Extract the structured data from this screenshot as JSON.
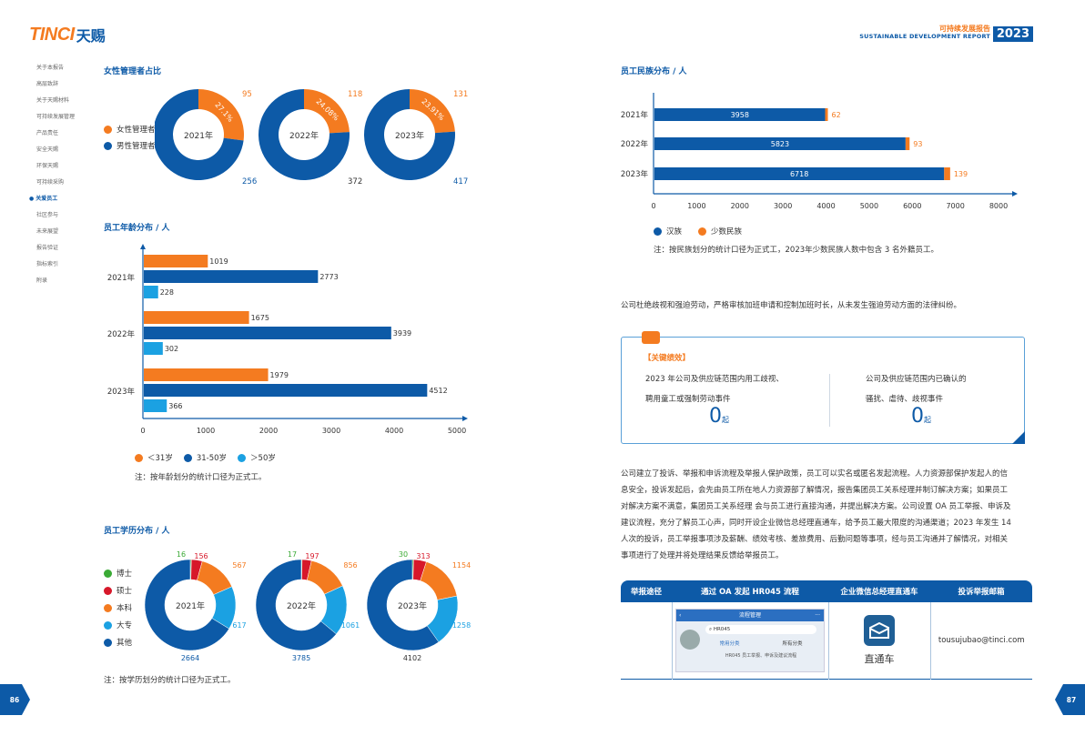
{
  "brand": {
    "logo_latin": "TINCI",
    "logo_cn": "天赐"
  },
  "report": {
    "title_cn": "可持续发展报告",
    "title_en": "SUSTAINABLE DEVELOPMENT REPORT",
    "year": "2023"
  },
  "colors": {
    "blue": "#0d5aa7",
    "orange": "#f47b20",
    "light_blue": "#1ba1e2",
    "green": "#3aaa35",
    "red": "#d7182a"
  },
  "nav": [
    "关于本报告",
    "高层致辞",
    "关于天赐材料",
    "可持续发展管理",
    "产品责任",
    "安全天赐",
    "环保天赐",
    "可持续采购",
    "关爱员工",
    "社区参与",
    "未来展望",
    "报告验证",
    "指标索引",
    "附录"
  ],
  "nav_active_index": 8,
  "female_mgmt": {
    "title": "女性管理者占比",
    "legend": [
      "女性管理者",
      "男性管理者"
    ],
    "donuts": [
      {
        "year": "2021年",
        "female": 95,
        "male": 256,
        "pct": "27.1%"
      },
      {
        "year": "2022年",
        "female": 118,
        "male": 372,
        "pct": "24.08%"
      },
      {
        "year": "2023年",
        "female": 131,
        "male": 417,
        "pct": "23.91%"
      }
    ]
  },
  "age_dist": {
    "title": "员工年龄分布 / 人",
    "legend": [
      "＜31岁",
      "31-50岁",
      "＞50岁"
    ],
    "note": "注：按年龄划分的统计口径为正式工。",
    "chart_data": {
      "type": "bar",
      "categories": [
        "2021年",
        "2022年",
        "2023年"
      ],
      "series": [
        {
          "name": "＜31岁",
          "values": [
            1019,
            1675,
            1979
          ]
        },
        {
          "name": "31-50岁",
          "values": [
            2773,
            3939,
            4512
          ]
        },
        {
          "name": "＞50岁",
          "values": [
            228,
            302,
            366
          ]
        }
      ],
      "xticks": [
        "0",
        "1000",
        "2000",
        "3000",
        "4000",
        "5000"
      ],
      "xlim": [
        0,
        5000
      ],
      "orientation": "horizontal"
    }
  },
  "edu_dist": {
    "title": "员工学历分布 / 人",
    "legend": [
      "博士",
      "硕士",
      "本科",
      "大专",
      "其他"
    ],
    "note": "注：按学历划分的统计口径为正式工。",
    "donuts": [
      {
        "year": "2021年",
        "values": [
          16,
          156,
          567,
          617,
          2664
        ]
      },
      {
        "year": "2022年",
        "values": [
          17,
          197,
          856,
          1061,
          3785
        ]
      },
      {
        "year": "2023年",
        "values": [
          30,
          313,
          1154,
          1258,
          4102
        ]
      }
    ]
  },
  "ethnic_dist": {
    "title": "员工民族分布 / 人",
    "legend": [
      "汉族",
      "少数民族"
    ],
    "note": "注：按民族划分的统计口径为正式工，2023年少数民族人数中包含 3 名外籍员工。",
    "chart_data": {
      "type": "bar",
      "categories": [
        "2021年",
        "2022年",
        "2023年"
      ],
      "series": [
        {
          "name": "汉族",
          "values": [
            3958,
            5823,
            6718
          ]
        },
        {
          "name": "少数民族",
          "values": [
            62,
            93,
            139
          ]
        }
      ],
      "xticks": [
        "0",
        "1000",
        "2000",
        "3000",
        "4000",
        "5000",
        "6000",
        "7000",
        "8000"
      ],
      "xlim": [
        0,
        8000
      ],
      "orientation": "horizontal",
      "stacked": true
    }
  },
  "forced_labor_text": "公司杜绝歧视和强迫劳动，严格审核加班申请和控制加班时长，从未发生强迫劳动方面的法律纠纷。",
  "kpi": {
    "label": "【关键绩效】",
    "left_line1": "2023 年公司及供应链范围内用工歧视、",
    "left_line2": "聘用童工或强制劳动事件",
    "left_value": "0",
    "left_unit": "起",
    "right_line1": "公司及供应链范围内已确认的",
    "right_line2": "骚扰、虐待、歧视事件",
    "right_value": "0",
    "right_unit": "起"
  },
  "complaint_lines": [
    "公司建立了投诉、举报和申诉流程及举报人保护政策，员工可以实名或匿名发起流程。人力资源部保护发起人的信",
    "息安全，投诉发起后，会先由员工所在地人力资源部了解情况，报告集团员工关系经理并制订解决方案；如果员工",
    "对解决方案不满意，集团员工关系经理 会与员工进行直接沟通，并提出解决方案。公司设置 OA 员工举报、申诉及",
    "建议流程，充分了解员工心声，同时开设企业微信总经理直通车，给予员工最大限度的沟通渠道；2023 年发生 14",
    "人次的投诉，员工举报事项涉及薪酬、绩效考核、差旅费用、后勤问题等事项，经与员工沟通并了解情况，对相关",
    "事项进行了处理并将处理结果反馈给举报员工。"
  ],
  "report_table": {
    "headers": [
      "举报途径",
      "通过 OA 发起 HR045 流程",
      "企业微信总经理直通车",
      "投诉举报邮箱"
    ],
    "oa": {
      "title": "流程管理",
      "search": "HR045",
      "tab1": "常用分类",
      "tab2": "所有分类",
      "item": "HR045 员工举报、申诉及建议流程"
    },
    "wechat_label": "直通车",
    "email": "tousujubao@tinci.com"
  },
  "pages": {
    "left": "86",
    "right": "87"
  }
}
